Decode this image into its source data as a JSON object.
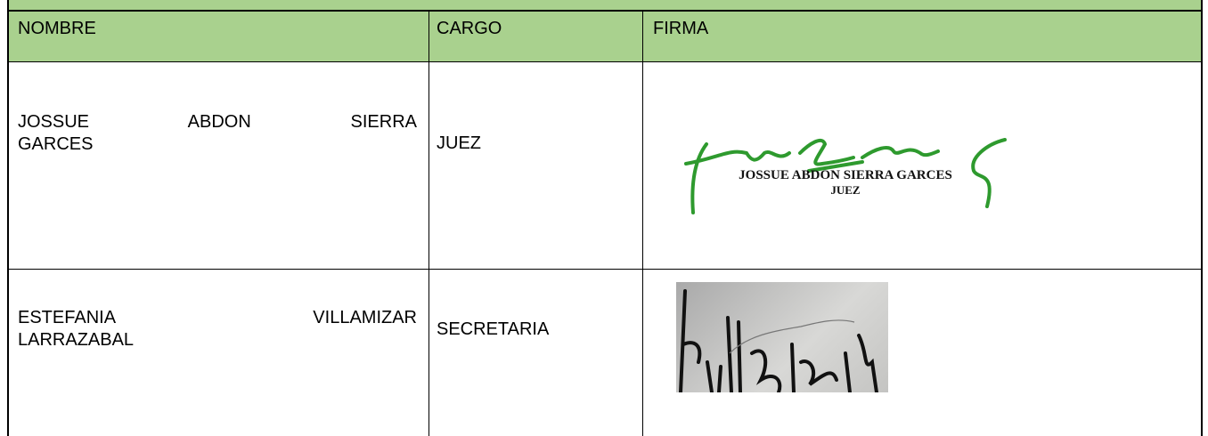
{
  "table": {
    "header": [
      "NOMBRE",
      "CARGO",
      "FIRMA"
    ],
    "rows": [
      {
        "name": "JOSSUE ABDON SIERRA GARCES",
        "role": "JUEZ",
        "stamp_name": "JOSSUE ABDON SIERRA GARCES",
        "stamp_title": "JUEZ"
      },
      {
        "name": "ESTEFANIA VILLAMIZAR LARRAZABAL",
        "role": "SECRETARIA"
      }
    ]
  }
}
